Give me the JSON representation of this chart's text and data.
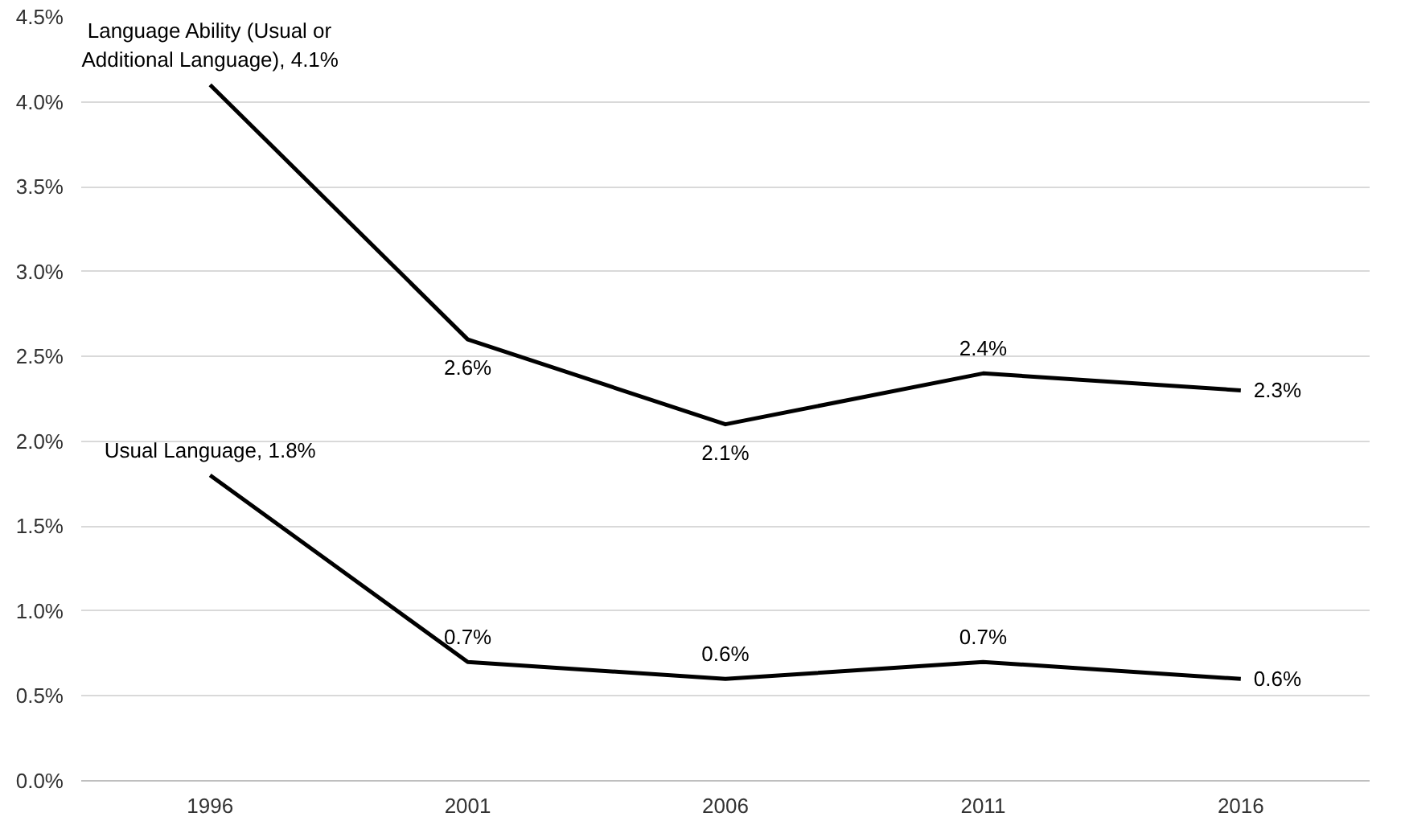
{
  "chart_data": {
    "type": "line",
    "categories": [
      "1996",
      "2001",
      "2006",
      "2011",
      "2016"
    ],
    "series": [
      {
        "color": "#000000",
        "values": [
          4.1,
          2.6,
          2.1,
          2.4,
          2.3
        ],
        "value_labels": [
          "Language Ability (Usual or Additional Language), 4.1%",
          "2.6%",
          "2.1%",
          "2.4%",
          "2.3%"
        ]
      },
      {
        "color": "#000000",
        "values": [
          1.8,
          0.7,
          0.6,
          0.7,
          0.6
        ],
        "value_labels": [
          "Usual Language, 1.8%",
          "0.7%",
          "0.6%",
          "0.7%",
          "0.6%"
        ]
      }
    ],
    "ylim": [
      0,
      4.5
    ],
    "yticks": [
      {
        "value": 0,
        "label": "0.0%"
      },
      {
        "value": 0.5,
        "label": "0.5%"
      },
      {
        "value": 1,
        "label": "1.0%"
      },
      {
        "value": 1.5,
        "label": "1.5%"
      },
      {
        "value": 2,
        "label": "2.0%"
      },
      {
        "value": 2.5,
        "label": "2.5%"
      },
      {
        "value": 3,
        "label": "3.0%"
      },
      {
        "value": 3.5,
        "label": "3.5%"
      },
      {
        "value": 4,
        "label": "4.0%"
      },
      {
        "value": 4.5,
        "label": "4.5%"
      }
    ],
    "grid": "y",
    "marker": "none",
    "line_style": "solid"
  }
}
